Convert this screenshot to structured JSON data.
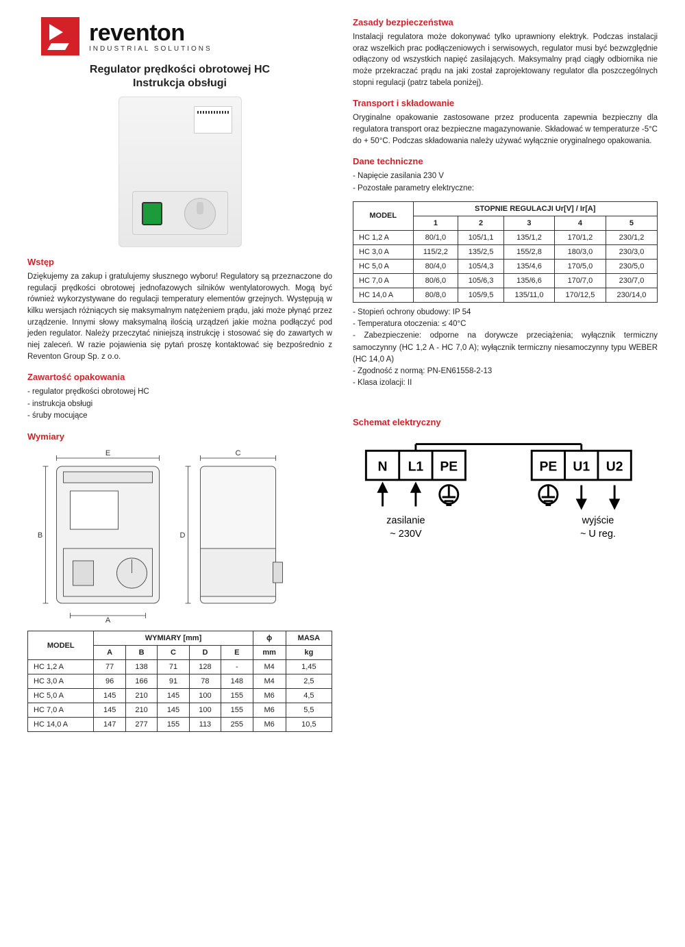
{
  "brand": {
    "name": "reventon",
    "tagline": "INDUSTRIAL SOLUTIONS"
  },
  "title_line1": "Regulator prędkości obrotowej HC",
  "title_line2": "Instrukcja obsługi",
  "colors": {
    "accent": "#d32127",
    "text": "#222222",
    "border": "#333333"
  },
  "wstep": {
    "heading": "Wstęp",
    "body": "Dziękujemy za zakup i gratulujemy słusznego wyboru! Regulatory są przeznaczone do regulacji prędkości obrotowej jednofazowych silników wentylatorowych. Mogą być również wykorzystywane do regulacji temperatury elementów grzejnych. Występują w kilku wersjach różniących się maksymalnym natężeniem prądu, jaki może płynąć przez urządzenie. Innymi słowy maksymalną ilością urządzeń jakie można podłączyć pod jeden regulator. Należy przeczytać niniejszą instrukcję i stosować się do zawartych w niej zaleceń. W razie pojawienia się pytań proszę kontaktować się bezpośrednio z Reventon Group Sp. z o.o."
  },
  "zawartosc": {
    "heading": "Zawartość opakowania",
    "items": [
      "- regulator prędkości obrotowej HC",
      "- instrukcja obsługi",
      "- śruby mocujące"
    ]
  },
  "wymiary": {
    "heading": "Wymiary",
    "labels": [
      "A",
      "B",
      "C",
      "D",
      "E"
    ],
    "table": {
      "header_group": "WYMIARY [mm]",
      "phi": "ϕ",
      "masa": "MASA",
      "model": "MODEL",
      "cols": [
        "A",
        "B",
        "C",
        "D",
        "E"
      ],
      "phi_unit": "mm",
      "masa_unit": "kg",
      "rows": [
        {
          "model": "HC 1,2 A",
          "A": "77",
          "B": "138",
          "C": "71",
          "D": "128",
          "E": "-",
          "phi": "M4",
          "masa": "1,45"
        },
        {
          "model": "HC 3,0 A",
          "A": "96",
          "B": "166",
          "C": "91",
          "D": "78",
          "E": "148",
          "phi": "M4",
          "masa": "2,5"
        },
        {
          "model": "HC 5,0 A",
          "A": "145",
          "B": "210",
          "C": "145",
          "D": "100",
          "E": "155",
          "phi": "M6",
          "masa": "4,5"
        },
        {
          "model": "HC 7,0 A",
          "A": "145",
          "B": "210",
          "C": "145",
          "D": "100",
          "E": "155",
          "phi": "M6",
          "masa": "5,5"
        },
        {
          "model": "HC 14,0 A",
          "A": "147",
          "B": "277",
          "C": "155",
          "D": "113",
          "E": "255",
          "phi": "M6",
          "masa": "10,5"
        }
      ]
    }
  },
  "zasady": {
    "heading": "Zasady bezpieczeństwa",
    "body": "Instalacji regulatora może dokonywać tylko uprawniony elektryk. Podczas instalacji oraz wszelkich prac podłączeniowych i serwisowych, regulator musi być bezwzględnie odłączony od wszystkich napięć zasilających. Maksymalny prąd ciągły odbiornika nie może przekraczać prądu na jaki został zaprojektowany regulator dla poszczególnych stopni regulacji (patrz tabela poniżej)."
  },
  "transport": {
    "heading": "Transport i składowanie",
    "body": "Oryginalne opakowanie zastosowane przez producenta zapewnia bezpieczny dla regulatora transport oraz bezpieczne magazynowanie. Składować w temperaturze -5°C do + 50°C. Podczas składowania należy używać wyłącznie oryginalnego opakowania."
  },
  "dane": {
    "heading": "Dane techniczne",
    "lines_before": [
      "- Napięcie zasilania 230 V",
      "- Pozostałe parametry elektryczne:"
    ],
    "table": {
      "model": "MODEL",
      "group": "STOPNIE REGULACJI Ur[V] / Ir[A]",
      "cols": [
        "1",
        "2",
        "3",
        "4",
        "5"
      ],
      "rows": [
        {
          "model": "HC 1,2 A",
          "v": [
            "80/1,0",
            "105/1,1",
            "135/1,2",
            "170/1,2",
            "230/1,2"
          ]
        },
        {
          "model": "HC 3,0 A",
          "v": [
            "115/2,2",
            "135/2,5",
            "155/2,8",
            "180/3,0",
            "230/3,0"
          ]
        },
        {
          "model": "HC 5,0 A",
          "v": [
            "80/4,0",
            "105/4,3",
            "135/4,6",
            "170/5,0",
            "230/5,0"
          ]
        },
        {
          "model": "HC 7,0 A",
          "v": [
            "80/6,0",
            "105/6,3",
            "135/6,6",
            "170/7,0",
            "230/7,0"
          ]
        },
        {
          "model": "HC 14,0 A",
          "v": [
            "80/8,0",
            "105/9,5",
            "135/11,0",
            "170/12,5",
            "230/14,0"
          ]
        }
      ]
    },
    "lines_after": [
      "- Stopień ochrony obudowy: IP 54",
      "- Temperatura otoczenia: ≤ 40°C",
      "- Zabezpieczenie: odporne na dorywcze przeciążenia;  wyłą­cznik termiczny samoczynny (HC 1,2 A - HC 7,0 A); wyłącznik termiczny niesamoczynny typu WEBER (HC 14,0 A)",
      "- Zgodność z normą: PN-EN61558-2-13",
      "- Klasa izolacji: II"
    ]
  },
  "schemat": {
    "heading": "Schemat elektryczny",
    "left_terminals": [
      "N",
      "L1",
      "PE"
    ],
    "right_terminals": [
      "PE",
      "U1",
      "U2"
    ],
    "left_caption1": "zasilanie",
    "left_caption2": "~ 230V",
    "right_caption1": "wyjście",
    "right_caption2": "~ U reg."
  }
}
